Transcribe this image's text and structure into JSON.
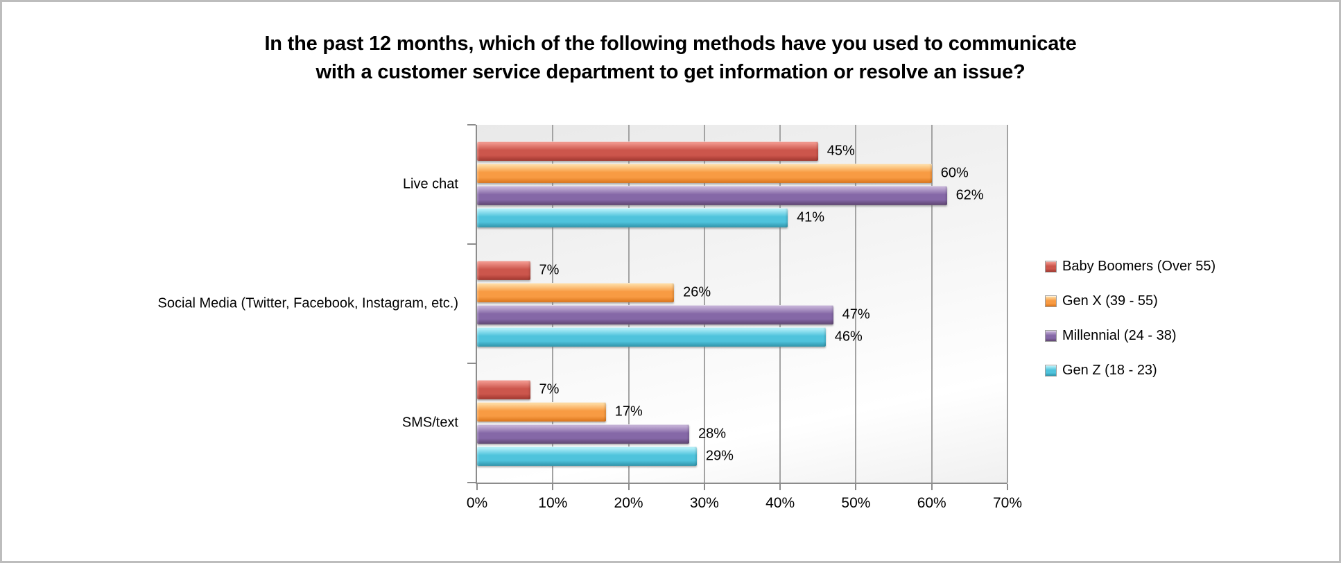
{
  "window": {
    "background_color": "#ffffff",
    "frame_border_color": "#bdbdbd"
  },
  "chart_data": {
    "type": "bar",
    "orientation": "horizontal",
    "title": "In the past 12 months, which of the following methods have you used to communicate with a customer service department to get information or resolve an issue?",
    "title_lines": [
      "In the past 12 months, which of the following methods have you used to communicate",
      "with a customer service department to get information or resolve an issue?"
    ],
    "categories": [
      "Live chat",
      "Social Media (Twitter, Facebook, Instagram, etc.)",
      "SMS/text"
    ],
    "series": [
      {
        "name": "Baby Boomers (Over 55)",
        "values": [
          45,
          7,
          7
        ],
        "labels": [
          "45%",
          "7%",
          "7%"
        ],
        "color": "#CC564C",
        "color_light": "#F0958B",
        "color_dark": "#9F362E"
      },
      {
        "name": "Gen X (39 - 55)",
        "values": [
          60,
          26,
          17
        ],
        "labels": [
          "60%",
          "26%",
          "17%"
        ],
        "color": "#F89B43",
        "color_light": "#FED9A0",
        "color_dark": "#D9731A"
      },
      {
        "name": "Millennial (24 - 38)",
        "values": [
          62,
          47,
          28
        ],
        "labels": [
          "62%",
          "47%",
          "28%"
        ],
        "color": "#8568A7",
        "color_light": "#C3B0D6",
        "color_dark": "#5E446F"
      },
      {
        "name": "Gen Z (18 - 23)",
        "values": [
          41,
          46,
          29
        ],
        "labels": [
          "41%",
          "46%",
          "29%"
        ],
        "color": "#4FC3DC",
        "color_light": "#B0EEF8",
        "color_dark": "#2F93A9"
      }
    ],
    "x_axis": {
      "min": 0,
      "max": 70,
      "tick_step": 10,
      "tick_labels": [
        "0%",
        "10%",
        "20%",
        "30%",
        "40%",
        "50%",
        "60%",
        "70%"
      ]
    },
    "data_label_suffix": "%",
    "grid": true,
    "legend_position": "right",
    "axis_color": "#8c8c8c",
    "gridline_color": "#a3a3a3",
    "plot_background": "gradient-light-gray"
  }
}
